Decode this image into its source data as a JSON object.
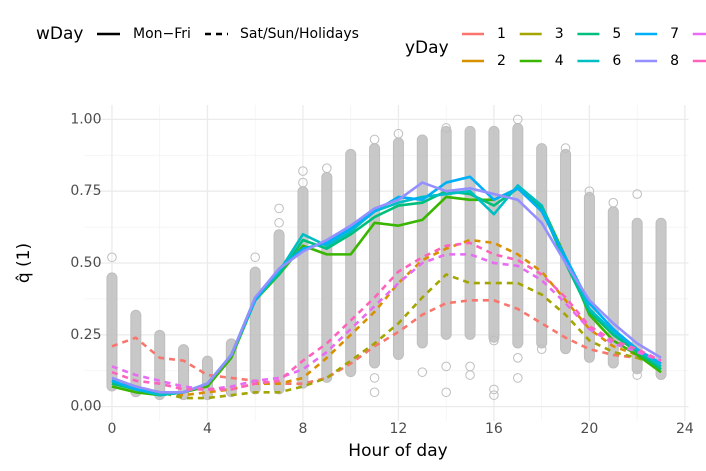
{
  "chart_data": {
    "type": "line",
    "x_label": "Hour of day",
    "y_label": "q̂ (1)",
    "x": [
      0,
      1,
      2,
      3,
      4,
      5,
      6,
      7,
      8,
      9,
      10,
      11,
      12,
      13,
      14,
      15,
      16,
      17,
      18,
      19,
      20,
      21,
      22,
      23
    ],
    "xlim": [
      -1.15,
      24.15
    ],
    "xticks": [
      0,
      4,
      8,
      12,
      16,
      20,
      24
    ],
    "ylim": [
      -0.05,
      1.05
    ],
    "yticks": [
      {
        "value": 0,
        "label": "0.00"
      },
      {
        "value": 0.25,
        "label": "0.25"
      },
      {
        "value": 0.5,
        "label": "0.50"
      },
      {
        "value": 0.75,
        "label": "0.75"
      },
      {
        "value": 1,
        "label": "1.00"
      }
    ],
    "grid": true,
    "points_color": "#BEBEBE",
    "observation_ranges": [
      [
        0.07,
        0.45
      ],
      [
        0.05,
        0.32
      ],
      [
        0.04,
        0.25
      ],
      [
        0.04,
        0.2
      ],
      [
        0.04,
        0.16
      ],
      [
        0.05,
        0.22
      ],
      [
        0.06,
        0.47
      ],
      [
        0.06,
        0.6
      ],
      [
        0.08,
        0.75
      ],
      [
        0.1,
        0.8
      ],
      [
        0.12,
        0.88
      ],
      [
        0.15,
        0.9
      ],
      [
        0.18,
        0.92
      ],
      [
        0.22,
        0.93
      ],
      [
        0.25,
        0.96
      ],
      [
        0.25,
        0.96
      ],
      [
        0.24,
        0.96
      ],
      [
        0.22,
        0.97
      ],
      [
        0.22,
        0.9
      ],
      [
        0.2,
        0.88
      ],
      [
        0.17,
        0.73
      ],
      [
        0.15,
        0.68
      ],
      [
        0.13,
        0.64
      ],
      [
        0.11,
        0.64
      ]
    ],
    "outliers": {
      "x": [
        0,
        6,
        7,
        7,
        8,
        8,
        9,
        11,
        11,
        11,
        12,
        13,
        14,
        14,
        14,
        15,
        15,
        16,
        16,
        16,
        17,
        17,
        17,
        18,
        19,
        20,
        21,
        22,
        22
      ],
      "y": [
        0.52,
        0.52,
        0.69,
        0.64,
        0.82,
        0.78,
        0.83,
        0.93,
        0.05,
        0.1,
        0.95,
        0.12,
        0.14,
        0.05,
        0.97,
        0.14,
        0.11,
        0.06,
        0.04,
        0.23,
        0.1,
        1.0,
        0.17,
        0.2,
        0.9,
        0.75,
        0.71,
        0.74,
        0.11
      ]
    },
    "linetype_legend": {
      "title": "wDay",
      "entries": [
        {
          "label": "Mon−Fri",
          "linetype": "solid"
        },
        {
          "label": "Sat/Sun/Holidays",
          "linetype": "dashed"
        }
      ]
    },
    "color_legend_title": "yDay",
    "series": [
      {
        "name": "1",
        "color": "#F8766D",
        "linetype": "dashed",
        "values": [
          0.21,
          0.24,
          0.17,
          0.16,
          0.11,
          0.1,
          0.09,
          0.08,
          0.08,
          0.1,
          0.15,
          0.21,
          0.26,
          0.32,
          0.36,
          0.37,
          0.37,
          0.34,
          0.29,
          0.24,
          0.2,
          0.18,
          0.17,
          0.15
        ]
      },
      {
        "name": "2",
        "color": "#D89000",
        "linetype": "dashed",
        "values": [
          0.08,
          0.07,
          0.05,
          0.04,
          0.05,
          0.06,
          0.08,
          0.08,
          0.1,
          0.17,
          0.25,
          0.33,
          0.43,
          0.51,
          0.55,
          0.58,
          0.57,
          0.53,
          0.47,
          0.37,
          0.27,
          0.21,
          0.18,
          0.15
        ]
      },
      {
        "name": "3",
        "color": "#A3A500",
        "linetype": "dashed",
        "values": [
          0.09,
          0.07,
          0.05,
          0.03,
          0.03,
          0.04,
          0.05,
          0.05,
          0.07,
          0.1,
          0.16,
          0.22,
          0.29,
          0.38,
          0.46,
          0.43,
          0.43,
          0.43,
          0.39,
          0.32,
          0.23,
          0.19,
          0.17,
          0.14
        ]
      },
      {
        "name": "4",
        "color": "#39B600",
        "linetype": "solid",
        "values": [
          0.07,
          0.05,
          0.04,
          0.05,
          0.07,
          0.17,
          0.37,
          0.46,
          0.56,
          0.53,
          0.53,
          0.64,
          0.63,
          0.65,
          0.73,
          0.72,
          0.72,
          0.76,
          0.7,
          0.52,
          0.32,
          0.23,
          0.18,
          0.12
        ]
      },
      {
        "name": "5",
        "color": "#00BF7D",
        "linetype": "solid",
        "values": [
          0.08,
          0.06,
          0.04,
          0.05,
          0.08,
          0.18,
          0.38,
          0.46,
          0.58,
          0.55,
          0.6,
          0.66,
          0.7,
          0.71,
          0.75,
          0.74,
          0.7,
          0.76,
          0.69,
          0.5,
          0.33,
          0.25,
          0.19,
          0.13
        ]
      },
      {
        "name": "6",
        "color": "#00BFC4",
        "linetype": "solid",
        "values": [
          0.09,
          0.06,
          0.04,
          0.05,
          0.08,
          0.18,
          0.37,
          0.47,
          0.6,
          0.56,
          0.61,
          0.68,
          0.71,
          0.73,
          0.74,
          0.75,
          0.67,
          0.77,
          0.7,
          0.51,
          0.34,
          0.26,
          0.2,
          0.14
        ]
      },
      {
        "name": "7",
        "color": "#00B0F6",
        "linetype": "solid",
        "values": [
          0.09,
          0.06,
          0.05,
          0.05,
          0.08,
          0.18,
          0.37,
          0.48,
          0.55,
          0.57,
          0.62,
          0.68,
          0.73,
          0.72,
          0.78,
          0.8,
          0.72,
          0.76,
          0.68,
          0.52,
          0.36,
          0.27,
          0.2,
          0.15
        ]
      },
      {
        "name": "8",
        "color": "#9590FF",
        "linetype": "solid",
        "values": [
          0.1,
          0.07,
          0.05,
          0.05,
          0.08,
          0.18,
          0.38,
          0.48,
          0.54,
          0.58,
          0.63,
          0.69,
          0.72,
          0.78,
          0.75,
          0.76,
          0.74,
          0.72,
          0.64,
          0.5,
          0.37,
          0.29,
          0.22,
          0.17
        ]
      },
      {
        "name": null,
        "color": "#E76BF3",
        "linetype": "dashed",
        "values": [
          0.14,
          0.11,
          0.09,
          0.07,
          0.06,
          0.07,
          0.09,
          0.1,
          0.13,
          0.19,
          0.27,
          0.35,
          0.43,
          0.5,
          0.53,
          0.53,
          0.5,
          0.49,
          0.44,
          0.36,
          0.27,
          0.22,
          0.19,
          0.16
        ]
      },
      {
        "name": null,
        "color": "#FF62BC",
        "linetype": "dashed",
        "values": [
          0.12,
          0.09,
          0.08,
          0.06,
          0.06,
          0.06,
          0.08,
          0.09,
          0.16,
          0.22,
          0.3,
          0.38,
          0.47,
          0.52,
          0.56,
          0.57,
          0.53,
          0.51,
          0.46,
          0.38,
          0.28,
          0.23,
          0.2,
          0.16
        ]
      }
    ]
  }
}
